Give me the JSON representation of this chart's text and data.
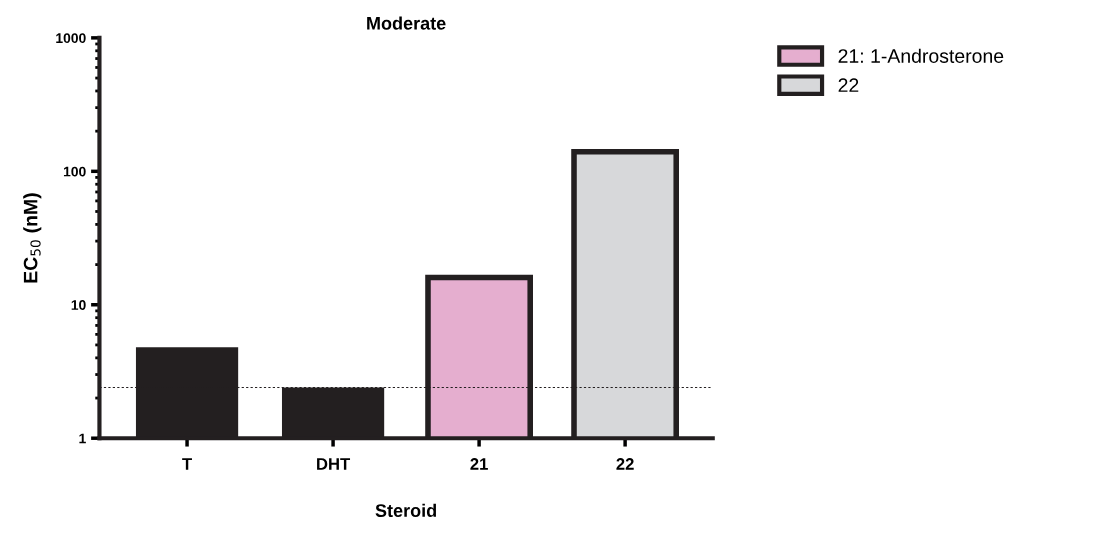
{
  "chart_data": {
    "type": "bar",
    "title": "Moderate",
    "xlabel": "Steroid",
    "ylabel": "EC$_{50}$ (nM)",
    "categories": [
      "T",
      "DHT",
      "21",
      "22"
    ],
    "series": [
      {
        "color": "#231f20",
        "values": [
          4.8,
          2.4,
          null,
          null
        ]
      },
      {
        "name": "21: 1-Androsterone",
        "color": "#e5aecf",
        "values": [
          null,
          null,
          16,
          null
        ]
      },
      {
        "name": "22",
        "color": "#d7d8da",
        "values": [
          null,
          null,
          null,
          140
        ]
      }
    ],
    "log": "y",
    "ylim": [
      1,
      1000
    ],
    "yticks": [
      1,
      10,
      100,
      1000
    ],
    "grid": false,
    "legend": "top right",
    "ref_lines": [
      {
        "axis": "y",
        "value": 2.4,
        "line_style": "dotted",
        "color": "#231f20"
      }
    ]
  }
}
